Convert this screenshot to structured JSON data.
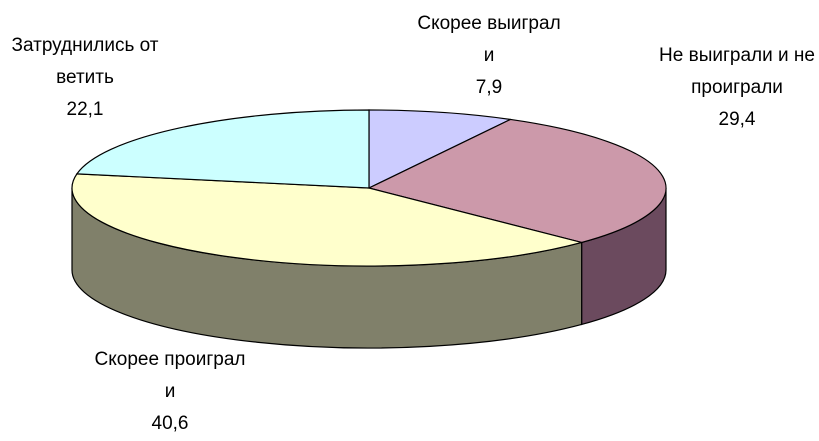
{
  "chart_data": {
    "type": "pie3d",
    "categories": [
      "Скорее выиграли",
      "Не выиграли и не проиграли",
      "Скорее проиграли",
      "Затруднились ответить"
    ],
    "values": [
      7.9,
      29.4,
      40.6,
      22.1
    ],
    "value_labels": [
      "7,9",
      "29,4",
      "40,6",
      "22,1"
    ],
    "colors": [
      "#ccccff",
      "#cc99aa",
      "#ffffcc",
      "#ccffff"
    ],
    "side_colors": [
      "#66667f",
      "#6b4a5e",
      "#80806a",
      "#668080"
    ]
  }
}
